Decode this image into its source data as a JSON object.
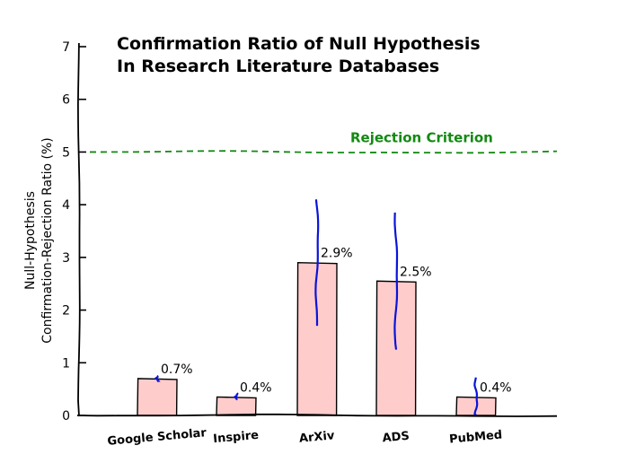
{
  "chart_data": {
    "type": "bar",
    "title_lines": [
      "Confirmation Ratio of Null Hypothesis",
      "In Research Literature Databases"
    ],
    "ylabel_lines": [
      "Null-Hypothesis",
      "Confirmation-Rejection Ratio (%)"
    ],
    "xlabel": "",
    "ylim": [
      0,
      7
    ],
    "yticks": [
      0,
      1,
      2,
      3,
      4,
      5,
      6,
      7
    ],
    "categories": [
      "Google Scholar",
      "Inspire",
      "ArXiv",
      "ADS",
      "PubMed"
    ],
    "values": [
      0.7,
      0.35,
      2.9,
      2.55,
      0.35
    ],
    "data_labels": [
      "0.7%",
      "0.4%",
      "2.9%",
      "2.5%",
      "0.4%"
    ],
    "error_bars": [
      [
        0.65,
        0.75
      ],
      [
        0.3,
        0.42
      ],
      [
        1.7,
        4.1
      ],
      [
        1.25,
        3.85
      ],
      [
        0.0,
        0.72
      ]
    ],
    "reference_line": {
      "value": 5,
      "label": "Rejection Criterion",
      "color": "#138a13",
      "style": "dashed"
    },
    "grid": false,
    "bar_color": "#ffcccc",
    "error_color": "#0a14d8"
  }
}
